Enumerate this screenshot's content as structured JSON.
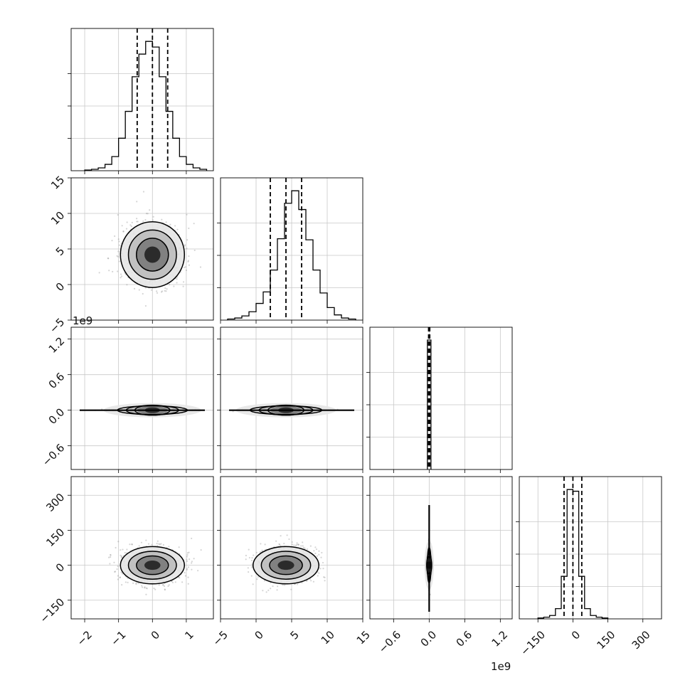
{
  "chart_data": {
    "type": "scatter",
    "subtype": "corner-plot",
    "title": "",
    "grid": true,
    "ndim": 4,
    "parameters": [
      {
        "index": 0,
        "label": "",
        "range": [
          -2.4,
          1.8
        ],
        "ticks": [
          -2,
          -1,
          0,
          1
        ],
        "tick_labels": [
          "−2",
          "−1",
          "0",
          "1"
        ],
        "quantiles": [
          -0.45,
          0.0,
          0.45
        ],
        "mean": 0.0,
        "sd": 0.45
      },
      {
        "index": 1,
        "label": "",
        "range": [
          -5,
          15
        ],
        "ticks": [
          -5,
          0,
          5,
          10,
          15
        ],
        "tick_labels": [
          "−5",
          "0",
          "5",
          "10",
          "15"
        ],
        "quantiles": [
          2.0,
          4.2,
          6.4
        ],
        "mean": 4.2,
        "sd": 2.2
      },
      {
        "index": 2,
        "label": "",
        "offset_text": "1e9",
        "range": [
          -1.0,
          1.4
        ],
        "ticks": [
          -0.6,
          0.0,
          0.6,
          1.2
        ],
        "tick_labels": [
          "−0.6",
          "0.0",
          "0.6",
          "1.2"
        ],
        "quantiles": [
          -0.01,
          0.0,
          0.01
        ],
        "mean": 0.0,
        "sd": 0.01
      },
      {
        "index": 3,
        "label": "",
        "range": [
          -230,
          380
        ],
        "ticks": [
          -150,
          0,
          150,
          300
        ],
        "tick_labels": [
          "−150",
          "0",
          "150",
          "300"
        ],
        "quantiles": [
          -38,
          0,
          38
        ],
        "mean": 0,
        "sd": 38
      }
    ],
    "histograms": [
      {
        "param": 0,
        "bins": [
          -2.0,
          -1.8,
          -1.6,
          -1.4,
          -1.2,
          -1.0,
          -0.8,
          -0.6,
          -0.4,
          -0.2,
          0.0,
          0.2,
          0.4,
          0.6,
          0.8,
          1.0,
          1.2,
          1.4,
          1.6
        ],
        "counts": [
          1,
          2,
          4,
          9,
          20,
          46,
          84,
          133,
          165,
          183,
          175,
          133,
          84,
          46,
          20,
          9,
          4,
          2
        ]
      },
      {
        "param": 1,
        "bins": [
          -4,
          -3,
          -2,
          -1,
          0,
          1,
          2,
          3,
          4,
          5,
          6,
          7,
          8,
          9,
          10,
          11,
          12,
          13,
          14
        ],
        "counts": [
          1,
          2,
          4,
          8,
          16,
          27,
          48,
          78,
          112,
          124,
          106,
          77,
          48,
          26,
          12,
          5,
          2,
          1
        ]
      },
      {
        "param": 2,
        "bins": [
          -0.03,
          0.03
        ],
        "counts": [
          1000
        ]
      },
      {
        "param": 3,
        "bins": [
          -150,
          -125,
          -100,
          -75,
          -50,
          -25,
          0,
          25,
          50,
          75,
          100,
          125,
          150
        ],
        "counts": [
          1,
          2,
          4,
          12,
          50,
          152,
          150,
          50,
          12,
          4,
          2,
          1
        ]
      }
    ],
    "contour_panels": [
      {
        "x_param": 0,
        "y_param": 1
      },
      {
        "x_param": 0,
        "y_param": 2
      },
      {
        "x_param": 1,
        "y_param": 2
      },
      {
        "x_param": 0,
        "y_param": 3
      },
      {
        "x_param": 1,
        "y_param": 3
      },
      {
        "x_param": 2,
        "y_param": 3
      }
    ]
  }
}
